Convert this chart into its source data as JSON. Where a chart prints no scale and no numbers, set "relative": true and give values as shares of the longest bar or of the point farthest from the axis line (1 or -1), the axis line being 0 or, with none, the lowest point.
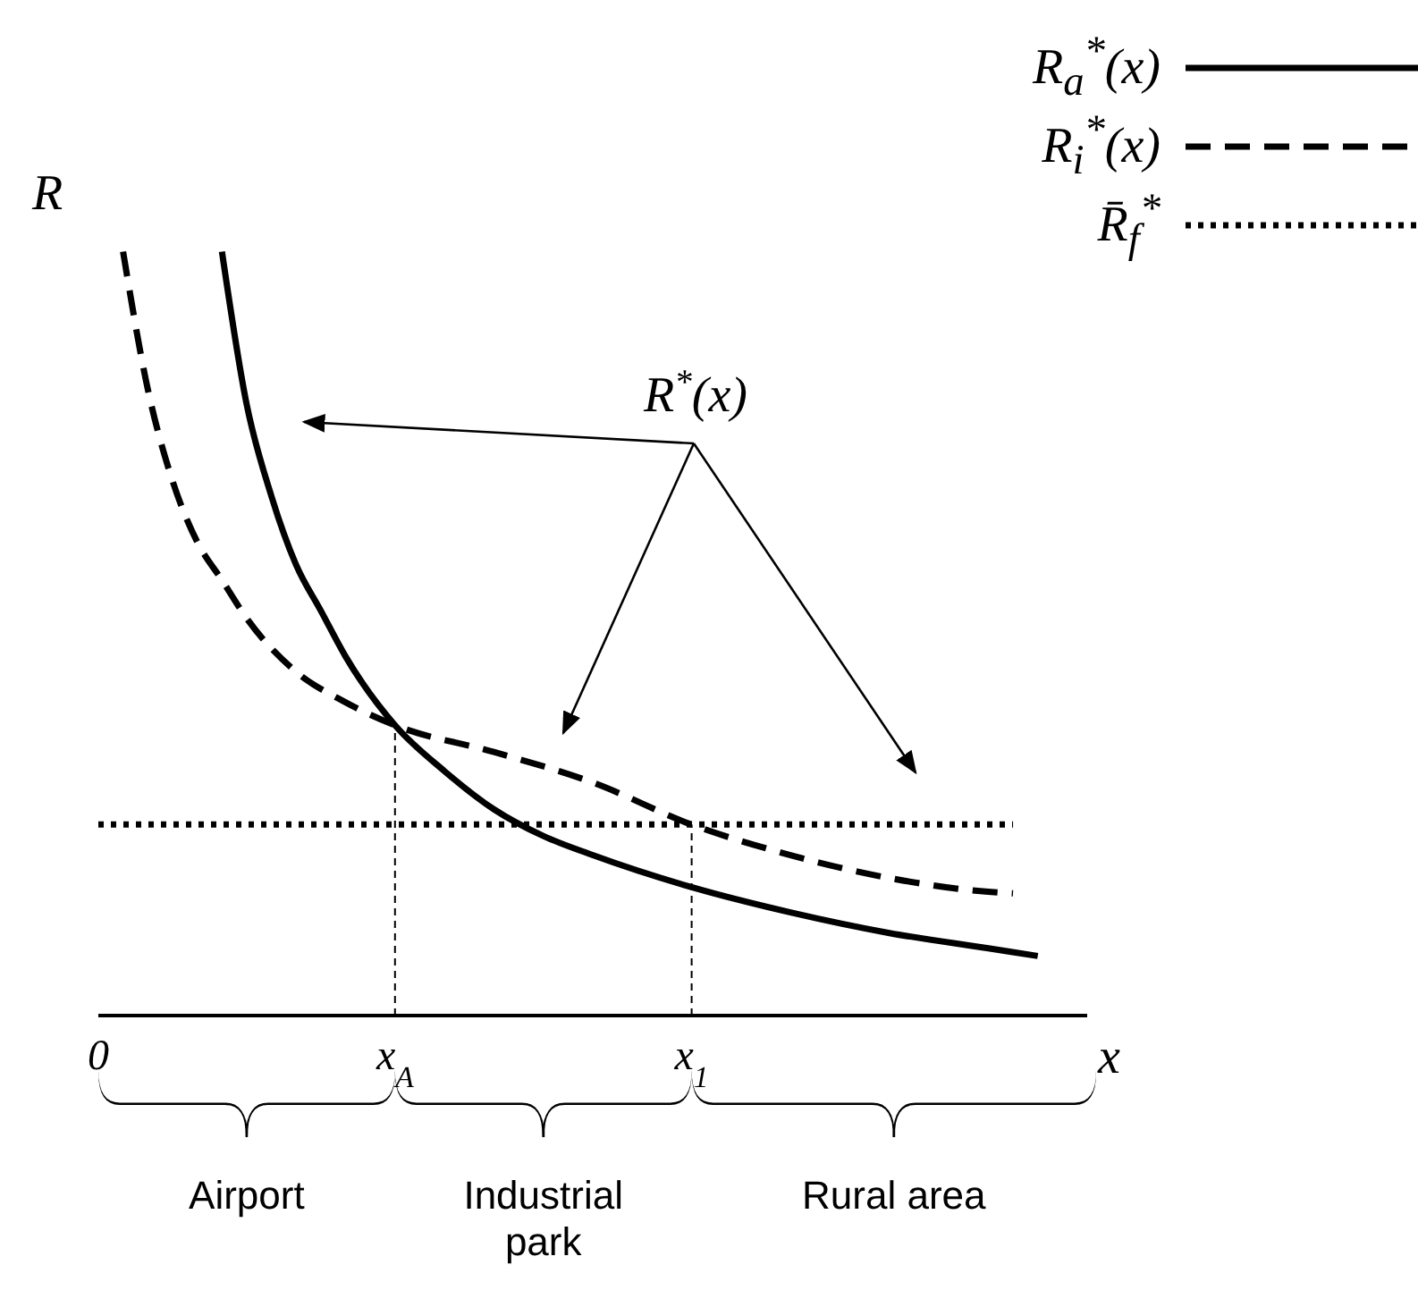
{
  "chart_data": {
    "type": "line",
    "relative": true,
    "xlabel": "x",
    "ylabel": "R",
    "categories": [
      "0",
      null,
      null,
      null,
      null,
      null,
      null,
      null,
      null,
      null,
      null,
      null,
      "x$_{A}$",
      null,
      null,
      null,
      null,
      null,
      null,
      null,
      null,
      null,
      null,
      null,
      "x$_{1}$",
      null,
      null,
      null,
      null,
      null,
      null,
      null,
      null,
      null,
      null,
      null,
      null,
      null,
      null,
      null,
      null
    ],
    "series": [
      {
        "name": "R$_{a}$$^{*}$(x)",
        "color": "#000000",
        "line_style": "solid",
        "values": [
          null,
          null,
          null,
          null,
          null,
          1.0,
          0.8,
          0.68,
          0.59,
          0.53,
          0.47,
          null,
          0.38,
          null,
          0.32,
          null,
          0.27,
          null,
          0.235,
          null,
          0.21,
          null,
          null,
          null,
          0.168,
          null,
          null,
          null,
          0.135,
          null,
          null,
          null,
          0.108,
          null,
          null,
          null,
          0.088,
          null,
          0.078,
          null,
          null
        ]
      },
      {
        "name": "R$_{i}$$^{*}$(x)",
        "color": "#000000",
        "line_style": "dashed",
        "values": [
          null,
          1.0,
          0.82,
          0.7,
          0.62,
          0.57,
          0.52,
          null,
          0.45,
          null,
          0.41,
          null,
          0.38,
          null,
          null,
          null,
          0.345,
          null,
          null,
          null,
          0.305,
          null,
          null,
          null,
          0.25,
          null,
          null,
          null,
          0.21,
          null,
          null,
          null,
          0.18,
          null,
          null,
          null,
          0.162,
          0.16,
          null,
          null,
          null
        ]
      },
      {
        "name": "R̄$_{f}$$^{*}$",
        "color": "#000000",
        "line_style": "dotted",
        "values": [
          0.25,
          null,
          null,
          null,
          null,
          null,
          null,
          null,
          null,
          null,
          null,
          null,
          null,
          null,
          null,
          null,
          null,
          null,
          null,
          null,
          null,
          null,
          null,
          null,
          null,
          null,
          null,
          null,
          null,
          null,
          null,
          null,
          null,
          null,
          null,
          null,
          null,
          0.25,
          null,
          null,
          null
        ]
      }
    ],
    "ref_lines": [
      {
        "axis": "x",
        "value": "x$_{A}$",
        "line_style": "dashed"
      },
      {
        "axis": "x",
        "value": "x$_{1}$",
        "line_style": "dashed"
      }
    ],
    "annotations": [
      "R$^{*}$(x)",
      "Airport",
      "Industrial park",
      "Rural area"
    ],
    "legend": "top right",
    "marker": "none"
  }
}
